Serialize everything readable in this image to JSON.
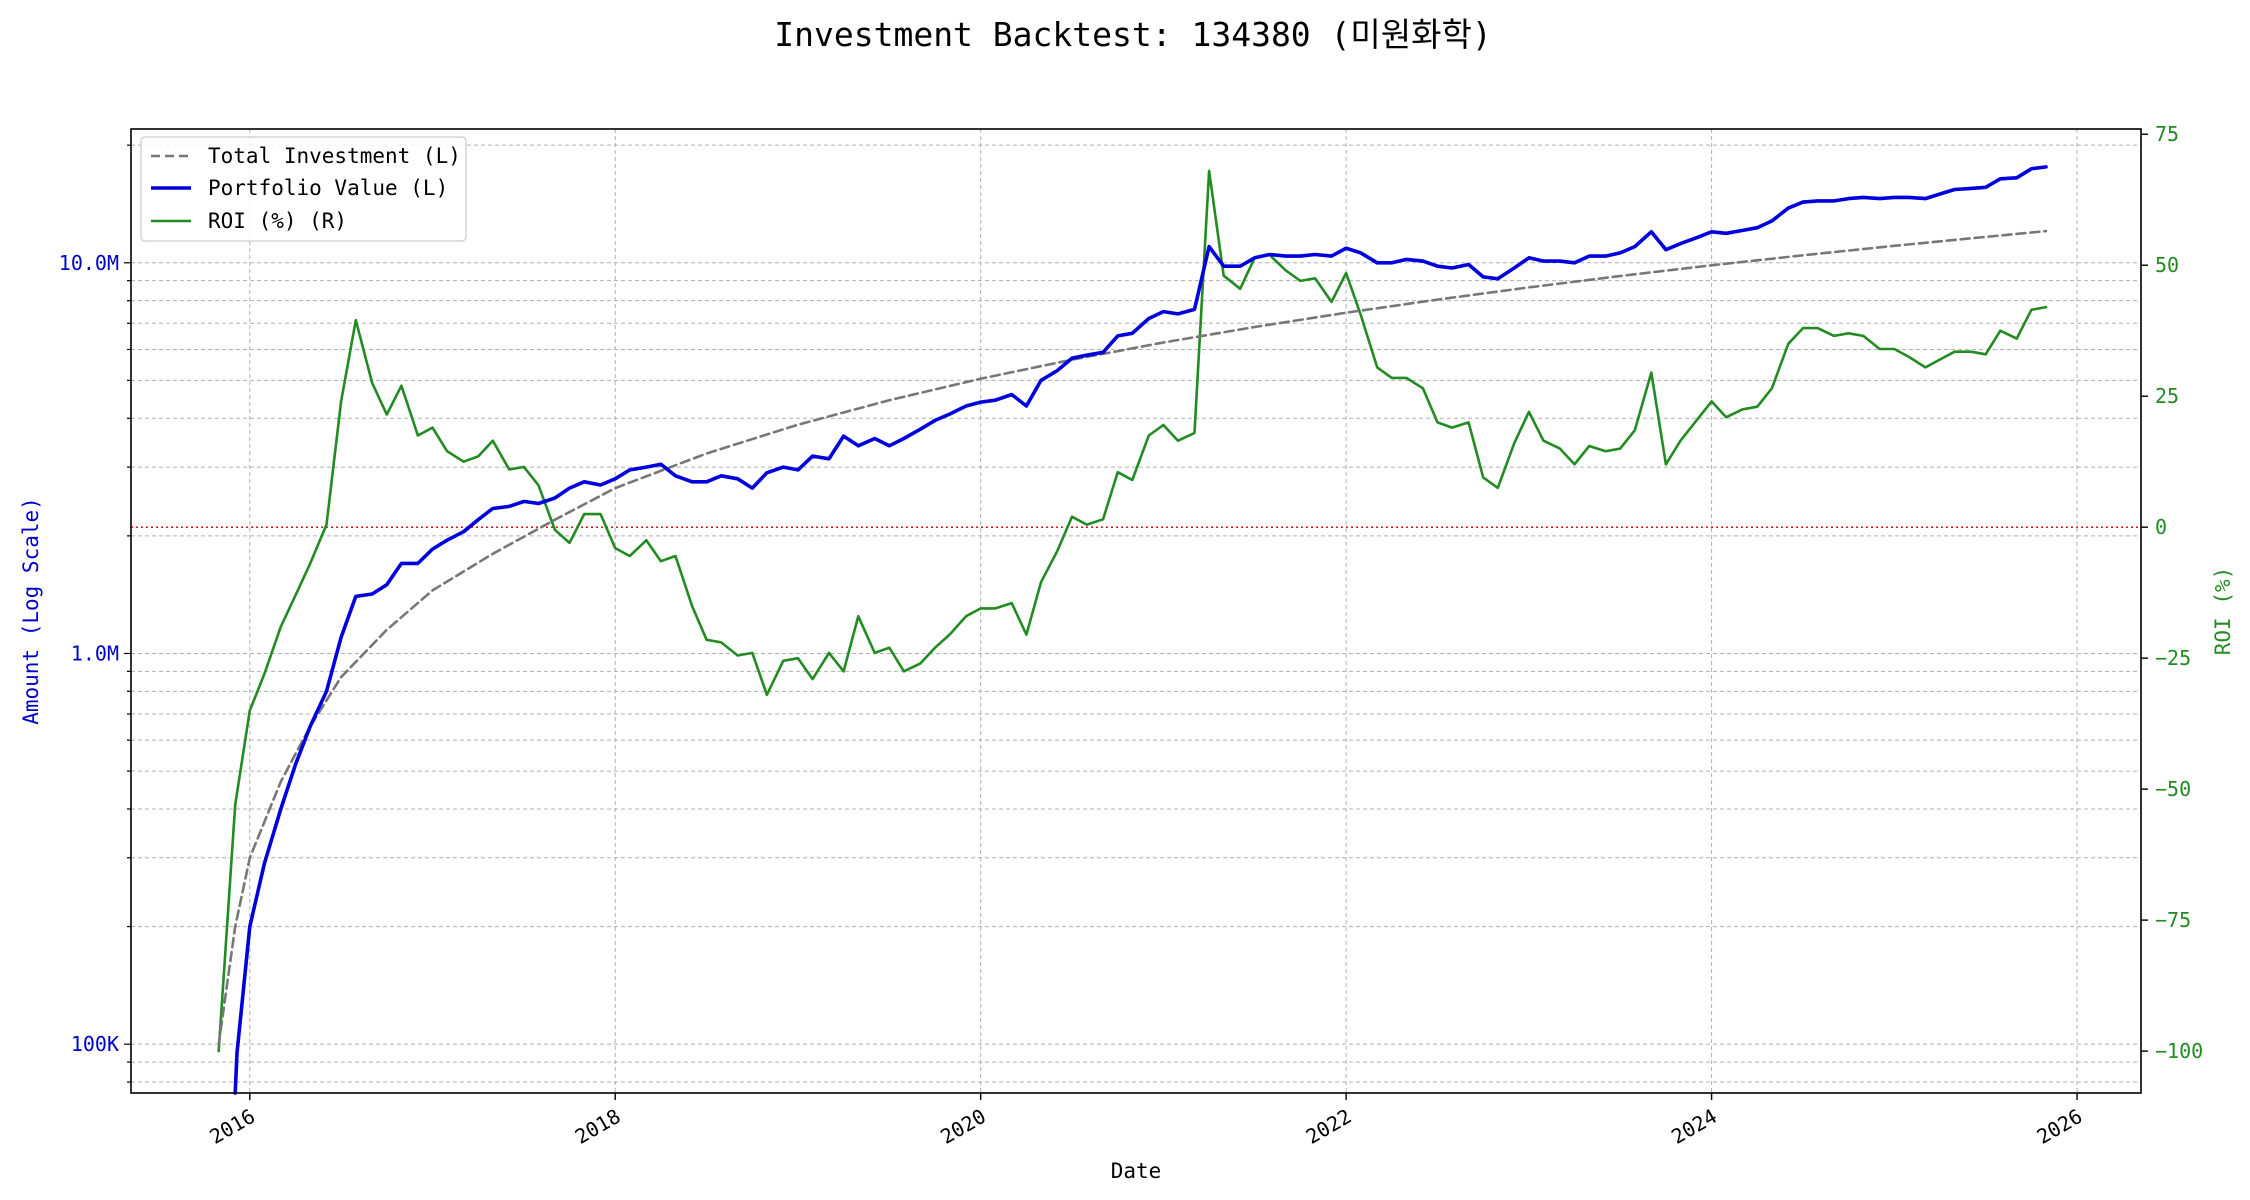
{
  "chart_data": {
    "type": "line",
    "title": "Investment Backtest: 134380 (미원화학)",
    "xlabel": "Date",
    "ylabel_left": "Amount (Log Scale)",
    "ylabel_right": "ROI (%)",
    "x_ticks": [
      "2016",
      "2018",
      "2020",
      "2022",
      "2024",
      "2026"
    ],
    "x_range": [
      2015.35,
      2026.35
    ],
    "y_left": {
      "scale": "log",
      "range": [
        75000,
        22000000
      ],
      "tick_values": [
        100000,
        1000000,
        10000000
      ],
      "tick_labels": [
        "100K",
        "1.0M",
        "10.0M"
      ],
      "color": "#0000cc"
    },
    "y_right": {
      "range": [
        -108,
        76
      ],
      "tick_values": [
        -100,
        -75,
        -50,
        -25,
        0,
        25,
        50,
        75
      ],
      "tick_labels": [
        "−100",
        "−75",
        "−50",
        "−25",
        "0",
        "25",
        "50",
        "75"
      ],
      "color": "#228b22"
    },
    "zero_line": {
      "roi": 0,
      "color": "#cc0000"
    },
    "grid": true,
    "legend_position": "top-left",
    "legend": [
      "Total Investment (L)",
      "Portfolio Value (L)",
      "ROI (%) (R)"
    ],
    "series": [
      {
        "name": "Total Investment (L)",
        "axis": "left",
        "style": "dashed",
        "color": "#777777",
        "x": [
          2015.83,
          2015.92,
          2016.0,
          2016.17,
          2016.33,
          2016.5,
          2016.75,
          2017.0,
          2017.33,
          2017.67,
          2018.0,
          2018.5,
          2019.0,
          2019.5,
          2020.0,
          2020.5,
          2021.0,
          2021.5,
          2022.0,
          2022.5,
          2023.0,
          2023.5,
          2024.0,
          2024.5,
          2025.0,
          2025.5,
          2025.83
        ],
        "values": [
          100000,
          200000,
          300000,
          470000,
          650000,
          870000,
          1150000,
          1450000,
          1800000,
          2200000,
          2650000,
          3250000,
          3850000,
          4450000,
          5050000,
          5650000,
          6250000,
          6850000,
          7450000,
          8050000,
          8650000,
          9250000,
          9850000,
          10450000,
          11050000,
          11650000,
          12050000
        ]
      },
      {
        "name": "Portfolio Value (L)",
        "axis": "left",
        "style": "solid",
        "color": "#0000dd",
        "x": [
          2015.92,
          2015.93,
          2016.0,
          2016.08,
          2016.17,
          2016.25,
          2016.33,
          2016.42,
          2016.5,
          2016.58,
          2016.67,
          2016.75,
          2016.83,
          2016.92,
          2017.0,
          2017.08,
          2017.17,
          2017.25,
          2017.33,
          2017.42,
          2017.5,
          2017.58,
          2017.67,
          2017.75,
          2017.83,
          2017.92,
          2018.0,
          2018.08,
          2018.17,
          2018.25,
          2018.33,
          2018.42,
          2018.5,
          2018.58,
          2018.67,
          2018.75,
          2018.83,
          2018.92,
          2019.0,
          2019.08,
          2019.17,
          2019.25,
          2019.33,
          2019.42,
          2019.5,
          2019.58,
          2019.67,
          2019.75,
          2019.83,
          2019.92,
          2020.0,
          2020.08,
          2020.17,
          2020.25,
          2020.33,
          2020.42,
          2020.5,
          2020.58,
          2020.67,
          2020.75,
          2020.83,
          2020.92,
          2021.0,
          2021.08,
          2021.17,
          2021.25,
          2021.33,
          2021.42,
          2021.5,
          2021.58,
          2021.67,
          2021.75,
          2021.83,
          2021.92,
          2022.0,
          2022.08,
          2022.17,
          2022.25,
          2022.33,
          2022.42,
          2022.5,
          2022.58,
          2022.67,
          2022.75,
          2022.83,
          2022.92,
          2023.0,
          2023.08,
          2023.17,
          2023.25,
          2023.33,
          2023.42,
          2023.5,
          2023.58,
          2023.67,
          2023.75,
          2023.83,
          2023.92,
          2024.0,
          2024.08,
          2024.17,
          2024.25,
          2024.33,
          2024.42,
          2024.5,
          2024.58,
          2024.67,
          2024.75,
          2024.83,
          2024.92,
          2025.0,
          2025.08,
          2025.17,
          2025.25,
          2025.33,
          2025.42,
          2025.5,
          2025.58,
          2025.67,
          2025.75,
          2025.83
        ],
        "values": [
          75000,
          95000,
          200000,
          290000,
          400000,
          520000,
          650000,
          800000,
          1100000,
          1400000,
          1420000,
          1500000,
          1700000,
          1700000,
          1850000,
          1950000,
          2050000,
          2200000,
          2350000,
          2380000,
          2450000,
          2420000,
          2500000,
          2650000,
          2750000,
          2700000,
          2800000,
          2950000,
          3000000,
          3050000,
          2850000,
          2750000,
          2750000,
          2850000,
          2800000,
          2650000,
          2900000,
          3000000,
          2950000,
          3200000,
          3150000,
          3600000,
          3400000,
          3550000,
          3400000,
          3550000,
          3750000,
          3950000,
          4100000,
          4300000,
          4400000,
          4450000,
          4600000,
          4300000,
          5000000,
          5300000,
          5700000,
          5800000,
          5900000,
          6500000,
          6600000,
          7200000,
          7500000,
          7400000,
          7600000,
          11000000,
          9800000,
          9800000,
          10300000,
          10500000,
          10400000,
          10400000,
          10500000,
          10400000,
          10900000,
          10600000,
          10000000,
          10000000,
          10200000,
          10100000,
          9800000,
          9700000,
          9900000,
          9200000,
          9100000,
          9700000,
          10300000,
          10100000,
          10100000,
          10000000,
          10400000,
          10400000,
          10600000,
          11000000,
          12000000,
          10800000,
          11200000,
          11600000,
          12000000,
          11900000,
          12100000,
          12300000,
          12800000,
          13800000,
          14300000,
          14400000,
          14400000,
          14600000,
          14700000,
          14600000,
          14700000,
          14700000,
          14600000,
          15000000,
          15400000,
          15500000,
          15600000,
          16400000,
          16500000,
          17400000,
          17600000
        ]
      },
      {
        "name": "ROI (%) (R)",
        "axis": "right",
        "style": "solid",
        "color": "#228b22",
        "x": [
          2015.83,
          2015.92,
          2016.0,
          2016.08,
          2016.17,
          2016.25,
          2016.33,
          2016.42,
          2016.5,
          2016.58,
          2016.67,
          2016.75,
          2016.83,
          2016.92,
          2017.0,
          2017.08,
          2017.17,
          2017.25,
          2017.33,
          2017.42,
          2017.5,
          2017.58,
          2017.67,
          2017.75,
          2017.83,
          2017.92,
          2018.0,
          2018.08,
          2018.17,
          2018.25,
          2018.33,
          2018.42,
          2018.5,
          2018.58,
          2018.67,
          2018.75,
          2018.83,
          2018.92,
          2019.0,
          2019.08,
          2019.17,
          2019.25,
          2019.33,
          2019.42,
          2019.5,
          2019.58,
          2019.67,
          2019.75,
          2019.83,
          2019.92,
          2020.0,
          2020.08,
          2020.17,
          2020.25,
          2020.33,
          2020.42,
          2020.5,
          2020.58,
          2020.67,
          2020.75,
          2020.83,
          2020.92,
          2021.0,
          2021.08,
          2021.17,
          2021.25,
          2021.33,
          2021.42,
          2021.5,
          2021.58,
          2021.67,
          2021.75,
          2021.83,
          2021.92,
          2022.0,
          2022.08,
          2022.17,
          2022.25,
          2022.33,
          2022.42,
          2022.5,
          2022.58,
          2022.67,
          2022.75,
          2022.83,
          2022.92,
          2023.0,
          2023.08,
          2023.17,
          2023.25,
          2023.33,
          2023.42,
          2023.5,
          2023.58,
          2023.67,
          2023.75,
          2023.83,
          2023.92,
          2024.0,
          2024.08,
          2024.17,
          2024.25,
          2024.33,
          2024.42,
          2024.5,
          2024.58,
          2024.67,
          2024.75,
          2024.83,
          2024.92,
          2025.0,
          2025.08,
          2025.17,
          2025.25,
          2025.33,
          2025.42,
          2025.5,
          2025.58,
          2025.67,
          2025.75,
          2025.83
        ],
        "values": [
          -100,
          -53,
          -35,
          -28,
          -19,
          -13,
          -7,
          0.5,
          24,
          39.5,
          27.5,
          21.5,
          27,
          17.5,
          19,
          14.5,
          12.5,
          13.5,
          16.5,
          11,
          11.5,
          8,
          -0.5,
          -3,
          2.5,
          2.5,
          -4,
          -5.5,
          -2.5,
          -6.5,
          -5.5,
          -15,
          -21.5,
          -22,
          -24.5,
          -24,
          -32,
          -25.5,
          -25,
          -29,
          -24,
          -27.5,
          -17,
          -24,
          -23,
          -27.5,
          -26,
          -23,
          -20.5,
          -17,
          -15.5,
          -15.5,
          -14.5,
          -20.5,
          -10.5,
          -4.5,
          2,
          0.5,
          1.5,
          10.5,
          9,
          17.5,
          19.5,
          16.5,
          18,
          68,
          48,
          45.5,
          51.5,
          52,
          49,
          47,
          47.5,
          43,
          48.5,
          40.5,
          30.5,
          28.5,
          28.5,
          26.5,
          20,
          19,
          20,
          9.5,
          7.5,
          16,
          22,
          16.5,
          15,
          12,
          15.5,
          14.5,
          15,
          18.5,
          29.5,
          12,
          16.5,
          20.5,
          24,
          21,
          22.5,
          23,
          26.5,
          35,
          38,
          38,
          36.5,
          37,
          36.5,
          34,
          34,
          32.5,
          30.5,
          32,
          33.5,
          33.5,
          33,
          37.5,
          36,
          41.5,
          42
        ]
      }
    ]
  }
}
